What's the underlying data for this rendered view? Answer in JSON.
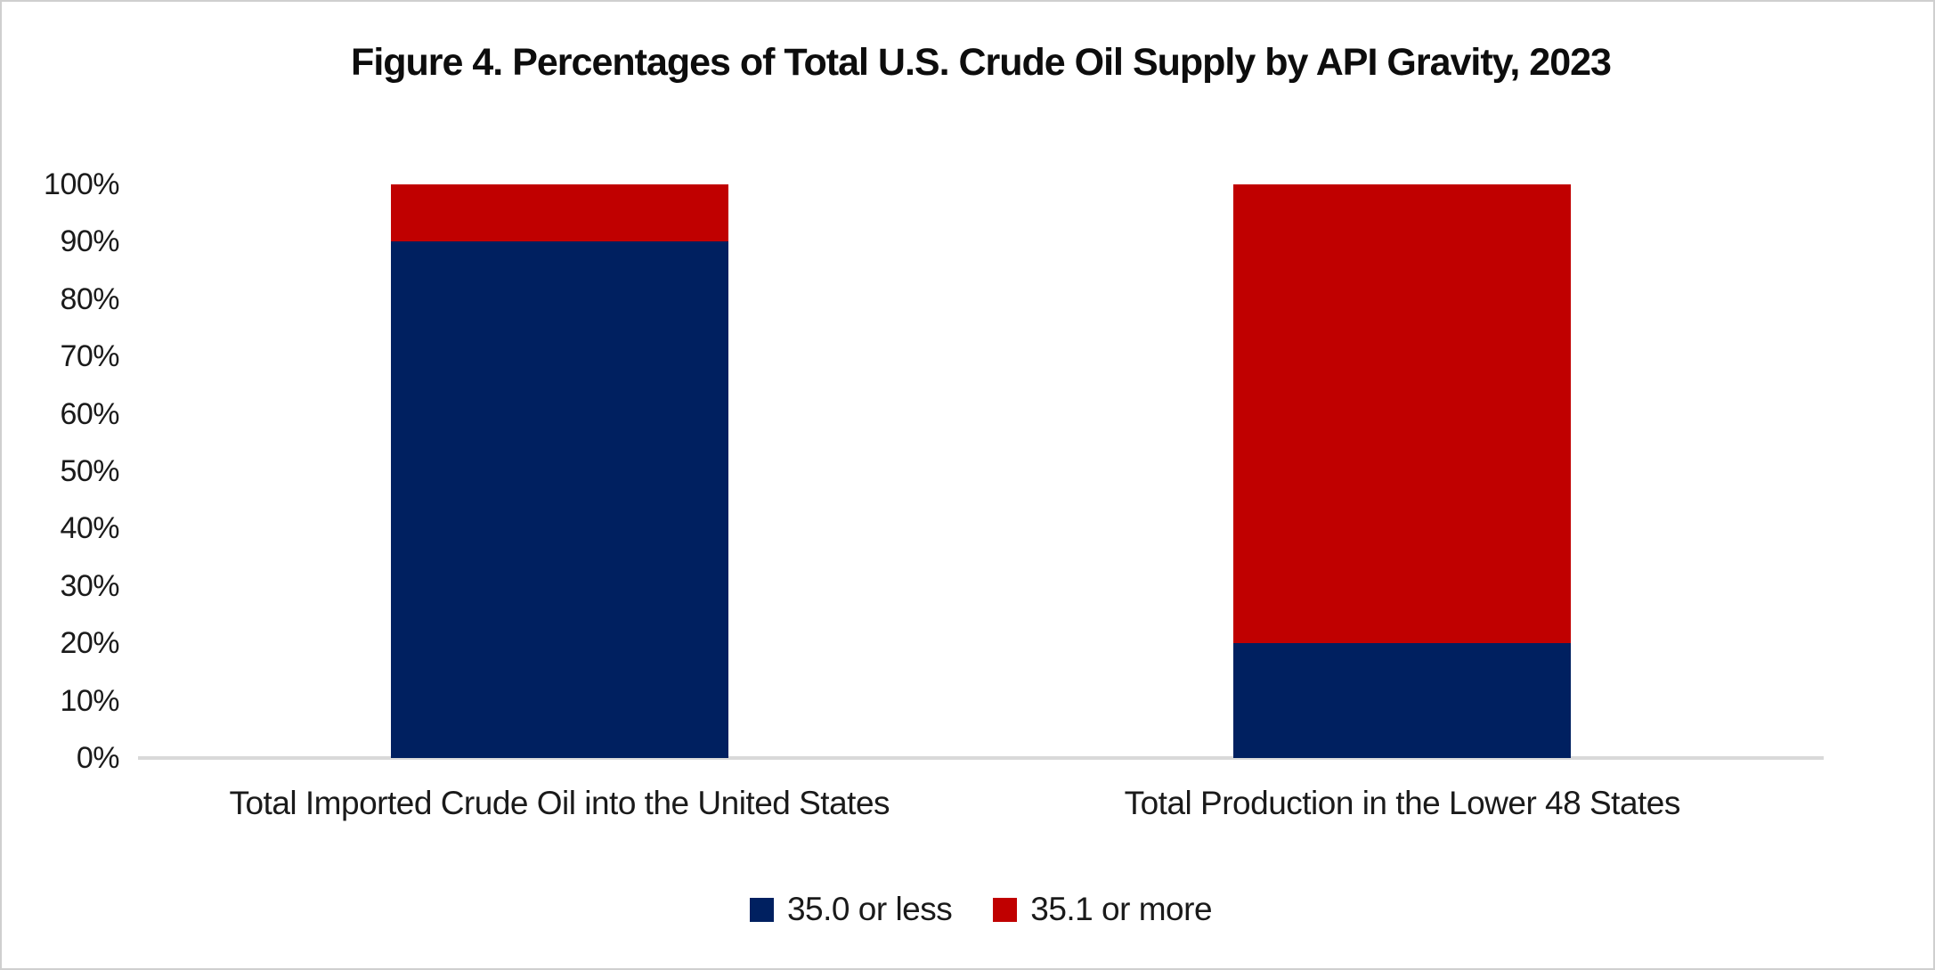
{
  "figure": {
    "title": "Figure 4. Percentages of Total U.S. Crude Oil Supply by API Gravity, 2023"
  },
  "chart_data": {
    "type": "bar",
    "subtype": "stacked-100-percent",
    "title": "Figure 4. Percentages of Total U.S. Crude Oil Supply by API Gravity, 2023",
    "categories": [
      "Total Imported Crude Oil into the United States",
      "Total Production in the Lower 48 States"
    ],
    "series": [
      {
        "name": "35.0 or less",
        "color": "#002060",
        "values": [
          90,
          20
        ]
      },
      {
        "name": "35.1 or more",
        "color": "#C00000",
        "values": [
          10,
          80
        ]
      }
    ],
    "xlabel": "",
    "ylabel": "",
    "ylim": [
      0,
      100
    ],
    "ytick_labels": [
      "0%",
      "10%",
      "20%",
      "30%",
      "40%",
      "50%",
      "60%",
      "70%",
      "80%",
      "90%",
      "100%"
    ],
    "grid": false,
    "legend_position": "bottom"
  },
  "colors": {
    "background": "#FFFFFF",
    "border": "#CFCFCF",
    "text": "#1A1A1A",
    "axis_line": "#D9D9D9",
    "series_blue": "#002060",
    "series_red": "#C00000"
  }
}
